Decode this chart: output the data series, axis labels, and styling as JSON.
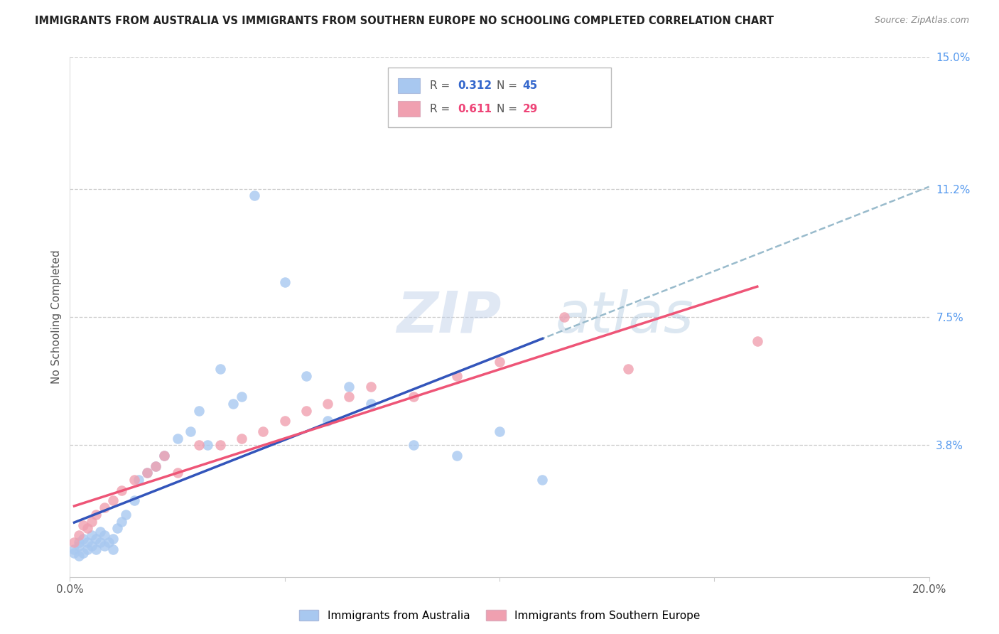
{
  "title": "IMMIGRANTS FROM AUSTRALIA VS IMMIGRANTS FROM SOUTHERN EUROPE NO SCHOOLING COMPLETED CORRELATION CHART",
  "source": "Source: ZipAtlas.com",
  "ylabel": "No Schooling Completed",
  "xlim": [
    0.0,
    0.2
  ],
  "ylim": [
    0.0,
    0.15
  ],
  "xtick_positions": [
    0.0,
    0.05,
    0.1,
    0.15,
    0.2
  ],
  "xtick_labels": [
    "0.0%",
    "",
    "",
    "",
    "20.0%"
  ],
  "ytick_positions_right": [
    0.15,
    0.112,
    0.075,
    0.038,
    0.0
  ],
  "ytick_labels_right": [
    "15.0%",
    "11.2%",
    "7.5%",
    "3.8%",
    ""
  ],
  "R_australia": 0.312,
  "N_australia": 45,
  "R_southern_europe": 0.611,
  "N_southern_europe": 29,
  "color_australia": "#A8C8F0",
  "color_southern_europe": "#F0A0B0",
  "color_australia_line": "#3355BB",
  "color_southern_europe_line": "#EE5577",
  "color_australia_dash": "#99BBCC",
  "legend_label_australia": "Immigrants from Australia",
  "legend_label_southern_europe": "Immigrants from Southern Europe",
  "aus_x": [
    0.001,
    0.001,
    0.002,
    0.002,
    0.002,
    0.003,
    0.003,
    0.004,
    0.004,
    0.005,
    0.005,
    0.006,
    0.006,
    0.007,
    0.007,
    0.008,
    0.008,
    0.009,
    0.01,
    0.01,
    0.011,
    0.012,
    0.013,
    0.015,
    0.016,
    0.018,
    0.02,
    0.022,
    0.025,
    0.028,
    0.03,
    0.032,
    0.035,
    0.038,
    0.04,
    0.043,
    0.05,
    0.055,
    0.06,
    0.065,
    0.07,
    0.08,
    0.09,
    0.1,
    0.11
  ],
  "aus_y": [
    0.007,
    0.008,
    0.006,
    0.009,
    0.01,
    0.007,
    0.011,
    0.008,
    0.01,
    0.009,
    0.012,
    0.008,
    0.011,
    0.01,
    0.013,
    0.009,
    0.012,
    0.01,
    0.008,
    0.011,
    0.014,
    0.016,
    0.018,
    0.022,
    0.028,
    0.03,
    0.032,
    0.035,
    0.04,
    0.042,
    0.048,
    0.038,
    0.06,
    0.05,
    0.052,
    0.11,
    0.085,
    0.058,
    0.045,
    0.055,
    0.05,
    0.038,
    0.035,
    0.042,
    0.028
  ],
  "se_x": [
    0.001,
    0.002,
    0.003,
    0.004,
    0.005,
    0.006,
    0.008,
    0.01,
    0.012,
    0.015,
    0.018,
    0.02,
    0.022,
    0.025,
    0.03,
    0.035,
    0.04,
    0.045,
    0.05,
    0.055,
    0.06,
    0.065,
    0.07,
    0.08,
    0.09,
    0.1,
    0.115,
    0.13,
    0.16
  ],
  "se_y": [
    0.01,
    0.012,
    0.015,
    0.014,
    0.016,
    0.018,
    0.02,
    0.022,
    0.025,
    0.028,
    0.03,
    0.032,
    0.035,
    0.03,
    0.038,
    0.038,
    0.04,
    0.042,
    0.045,
    0.048,
    0.05,
    0.052,
    0.055,
    0.052,
    0.058,
    0.062,
    0.075,
    0.06,
    0.068
  ]
}
